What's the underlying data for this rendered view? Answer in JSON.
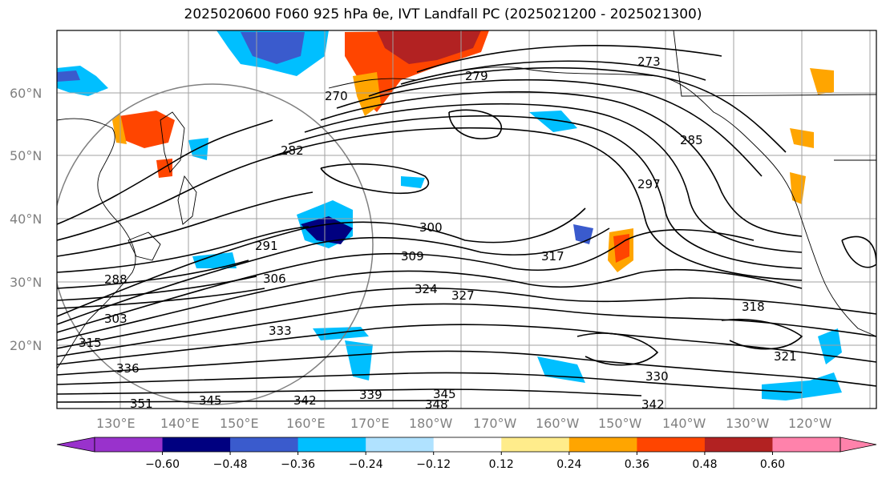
{
  "title": "2025020600 F060 925 hPa θe, IVT Landfall PC (2025021200 - 2025021300)",
  "lat_labels": [
    "60°N",
    "50°N",
    "40°N",
    "30°N",
    "20°N"
  ],
  "lon_labels": [
    "130°E",
    "140°E",
    "150°E",
    "160°E",
    "170°E",
    "180°W",
    "170°W",
    "160°W",
    "150°W",
    "140°W",
    "130°W",
    "120°W"
  ],
  "contour_labels": [
    "273",
    "279",
    "270",
    "282",
    "285",
    "297",
    "291",
    "300",
    "309",
    "317",
    "306",
    "288",
    "324",
    "327",
    "318",
    "303",
    "315",
    "333",
    "336",
    "321",
    "330",
    "351",
    "345",
    "342",
    "339",
    "345",
    "348",
    "342"
  ],
  "colorbar": {
    "ticks": [
      "−0.60",
      "−0.48",
      "−0.36",
      "−0.24",
      "−0.12",
      "0.12",
      "0.24",
      "0.36",
      "0.48",
      "0.60"
    ],
    "colors": [
      "#9932cc",
      "#000080",
      "#3a5bcd",
      "#00bfff",
      "#b0e2ff",
      "#ffffff",
      "#ffec8b",
      "#ffa500",
      "#ff4500",
      "#b22222",
      "#ff82ab"
    ]
  }
}
